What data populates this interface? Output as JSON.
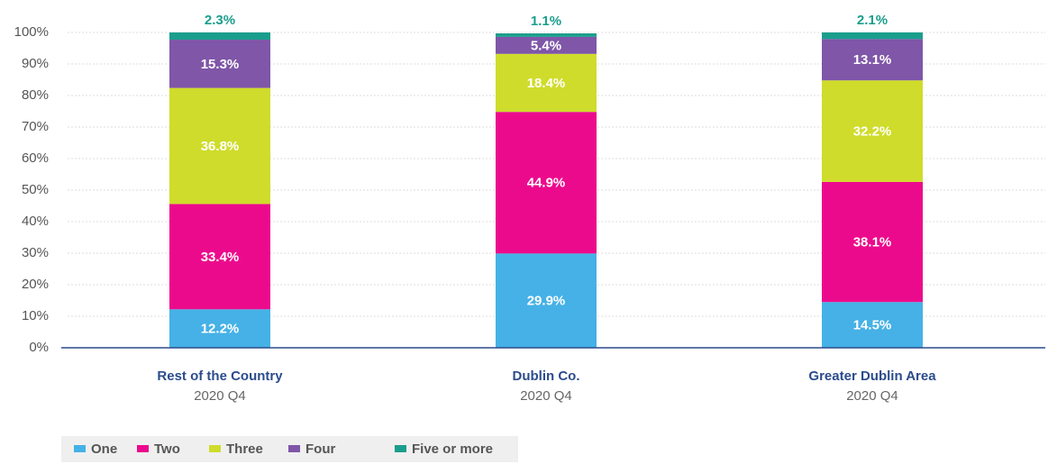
{
  "chart_data": {
    "type": "stacked_bar",
    "categories": [
      "Rest of the Country",
      "Dublin Co.",
      "Greater Dublin Area"
    ],
    "category_sublabels": [
      "2020 Q4",
      "2020 Q4",
      "2020 Q4"
    ],
    "series": [
      {
        "name": "One",
        "color": "#45b1e6",
        "values": [
          12.2,
          29.9,
          14.5
        ],
        "value_labels": [
          "12.2%",
          "29.9%",
          "14.5%"
        ]
      },
      {
        "name": "Two",
        "color": "#ec0a8c",
        "values": [
          33.4,
          44.9,
          38.1
        ],
        "value_labels": [
          "33.4%",
          "44.9%",
          "38.1%"
        ]
      },
      {
        "name": "Three",
        "color": "#cfdc2b",
        "values": [
          36.8,
          18.4,
          32.2
        ],
        "value_labels": [
          "36.8%",
          "18.4%",
          "32.2%"
        ]
      },
      {
        "name": "Four",
        "color": "#7f56a8",
        "values": [
          15.3,
          5.4,
          13.1
        ],
        "value_labels": [
          "15.3%",
          "5.4%",
          "13.1%"
        ]
      },
      {
        "name": "Five or more",
        "color": "#1a9e8c",
        "values": [
          2.3,
          1.1,
          2.1
        ],
        "value_labels": [
          "2.3%",
          "1.1%",
          "2.1%"
        ]
      }
    ],
    "ylim": [
      0,
      100
    ],
    "yticks": [
      {
        "value": 0,
        "label": "0%"
      },
      {
        "value": 10,
        "label": "10%"
      },
      {
        "value": 20,
        "label": "20%"
      },
      {
        "value": 30,
        "label": "30%"
      },
      {
        "value": 40,
        "label": "40%"
      },
      {
        "value": 50,
        "label": "50%"
      },
      {
        "value": 60,
        "label": "60%"
      },
      {
        "value": 70,
        "label": "70%"
      },
      {
        "value": 80,
        "label": "80%"
      },
      {
        "value": 90,
        "label": "90%"
      },
      {
        "value": 100,
        "label": "100%"
      }
    ],
    "grid": true,
    "legend": "bottom-left"
  }
}
